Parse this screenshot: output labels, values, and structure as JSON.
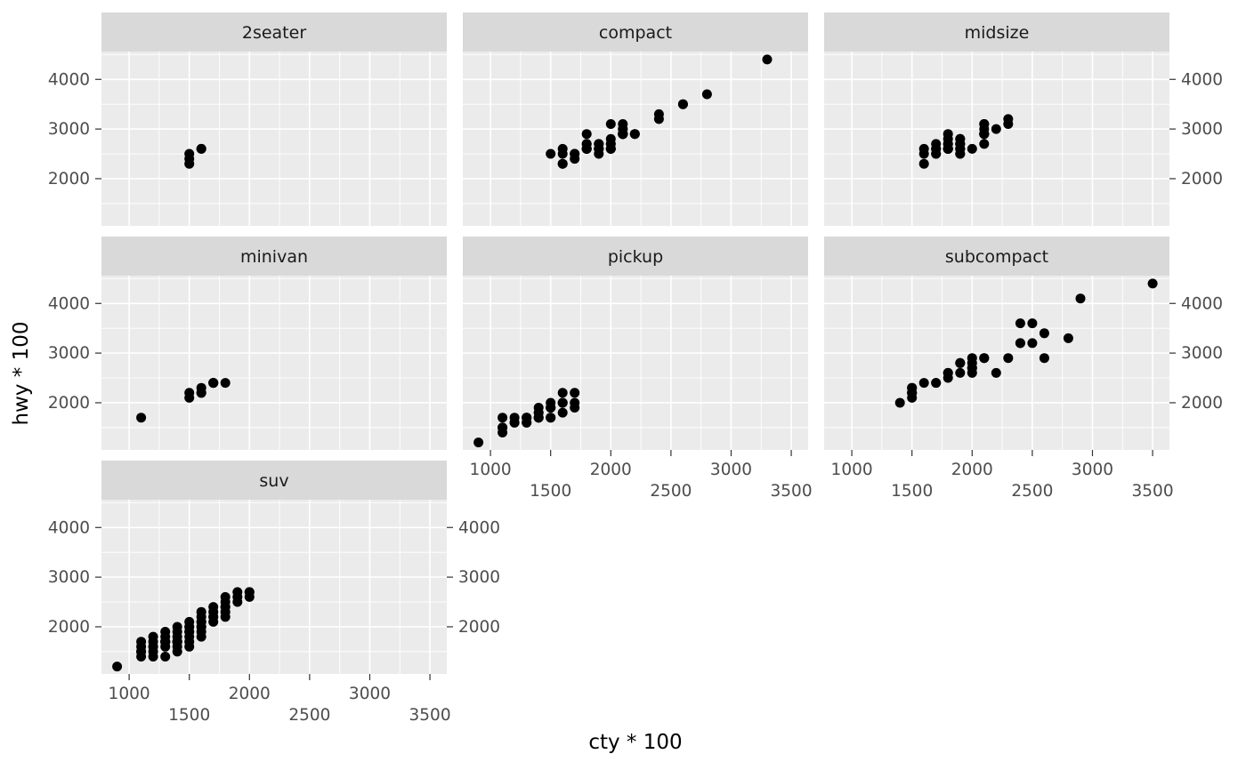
{
  "chart_data": {
    "type": "scatter",
    "title": "",
    "xlabel": "cty * 100",
    "ylabel": "hwy * 100",
    "facet_by": "class",
    "x_domain": [
      770,
      3640
    ],
    "y_domain": [
      1050,
      4560
    ],
    "x_major_ticks": [
      1000,
      1500,
      2000,
      2500,
      3000,
      3500
    ],
    "x_minor_ticks": [
      1250,
      1750,
      2250,
      2750,
      3250
    ],
    "y_major_ticks": [
      2000,
      3000,
      4000
    ],
    "y_minor_ticks": [
      1500,
      2500,
      3500,
      4500
    ],
    "legend": "none",
    "grid": "on",
    "colors": {
      "panel_bg": "#ebebeb",
      "strip_bg": "#d9d9d9",
      "grid_major": "#ffffff",
      "grid_minor": "#ffffff",
      "point": "#000000",
      "tick_label": "#4d4d4d",
      "strip_text": "#1a1a1a",
      "tick_mark": "#333333"
    },
    "facets": [
      {
        "label": "2seater",
        "points": [
          [
            1500,
            2300
          ],
          [
            1500,
            2400
          ],
          [
            1500,
            2500
          ],
          [
            1600,
            2600
          ],
          [
            1600,
            2600
          ]
        ]
      },
      {
        "label": "compact",
        "points": [
          [
            1800,
            2900
          ],
          [
            2100,
            2900
          ],
          [
            2000,
            3100
          ],
          [
            2100,
            3000
          ],
          [
            1600,
            2600
          ],
          [
            1800,
            2600
          ],
          [
            1800,
            2700
          ],
          [
            1800,
            2600
          ],
          [
            1600,
            2500
          ],
          [
            2000,
            2800
          ],
          [
            1900,
            2700
          ],
          [
            1700,
            2500
          ],
          [
            1700,
            2500
          ],
          [
            1500,
            2500
          ],
          [
            1800,
            2600
          ],
          [
            1800,
            2600
          ],
          [
            2000,
            2600
          ],
          [
            1900,
            2600
          ],
          [
            2000,
            2700
          ],
          [
            2000,
            2700
          ],
          [
            1900,
            2500
          ],
          [
            2000,
            2600
          ],
          [
            1800,
            2600
          ],
          [
            1800,
            2700
          ],
          [
            1900,
            2700
          ],
          [
            2100,
            2900
          ],
          [
            2100,
            3000
          ],
          [
            2000,
            2600
          ],
          [
            2100,
            3100
          ],
          [
            2400,
            3300
          ],
          [
            2400,
            3200
          ],
          [
            2600,
            3500
          ],
          [
            2600,
            3500
          ],
          [
            2800,
            3700
          ],
          [
            2100,
            2900
          ],
          [
            1900,
            2600
          ],
          [
            2100,
            2900
          ],
          [
            2200,
            2900
          ],
          [
            1600,
            2300
          ],
          [
            2100,
            2900
          ],
          [
            1900,
            2600
          ],
          [
            2100,
            2900
          ],
          [
            2200,
            2900
          ],
          [
            1700,
            2400
          ],
          [
            3300,
            4400
          ],
          [
            2100,
            2900
          ],
          [
            2100,
            2900
          ],
          [
            1600,
            2300
          ]
        ]
      },
      {
        "label": "midsize",
        "points": [
          [
            1700,
            2500
          ],
          [
            1700,
            2500
          ],
          [
            1600,
            2300
          ],
          [
            1900,
            2700
          ],
          [
            2200,
            3000
          ],
          [
            1800,
            2600
          ],
          [
            1800,
            2900
          ],
          [
            1700,
            2600
          ],
          [
            1800,
            2600
          ],
          [
            1800,
            2700
          ],
          [
            1900,
            2800
          ],
          [
            1800,
            2600
          ],
          [
            1800,
            2600
          ],
          [
            1900,
            2800
          ],
          [
            2100,
            3100
          ],
          [
            2100,
            2900
          ],
          [
            1900,
            2700
          ],
          [
            2300,
            3100
          ],
          [
            2300,
            3200
          ],
          [
            1900,
            2700
          ],
          [
            1800,
            2600
          ],
          [
            1900,
            2500
          ],
          [
            1900,
            2500
          ],
          [
            1900,
            2600
          ],
          [
            1800,
            2600
          ],
          [
            1700,
            2700
          ],
          [
            1800,
            2800
          ],
          [
            1600,
            2600
          ],
          [
            1700,
            2600
          ],
          [
            2100,
            2900
          ],
          [
            2100,
            2700
          ],
          [
            2000,
            2600
          ],
          [
            1900,
            2600
          ],
          [
            1800,
            2600
          ],
          [
            1800,
            2700
          ],
          [
            2100,
            3100
          ],
          [
            2100,
            2900
          ],
          [
            1900,
            2600
          ],
          [
            2100,
            2900
          ],
          [
            2100,
            3000
          ],
          [
            1600,
            2500
          ]
        ]
      },
      {
        "label": "minivan",
        "points": [
          [
            1800,
            2400
          ],
          [
            1700,
            2400
          ],
          [
            1600,
            2200
          ],
          [
            1600,
            2200
          ],
          [
            1700,
            2400
          ],
          [
            1700,
            2400
          ],
          [
            1100,
            1700
          ],
          [
            1500,
            2200
          ],
          [
            1500,
            2100
          ],
          [
            1600,
            2300
          ],
          [
            1700,
            2400
          ]
        ]
      },
      {
        "label": "pickup",
        "points": [
          [
            900,
            1200
          ],
          [
            1100,
            1500
          ],
          [
            1100,
            1400
          ],
          [
            1100,
            1500
          ],
          [
            1200,
            1600
          ],
          [
            1200,
            1700
          ],
          [
            1300,
            1600
          ],
          [
            1300,
            1700
          ],
          [
            1300,
            1700
          ],
          [
            1300,
            1600
          ],
          [
            1400,
            1700
          ],
          [
            1400,
            1900
          ],
          [
            1400,
            1700
          ],
          [
            1400,
            1800
          ],
          [
            1400,
            1700
          ],
          [
            1500,
            1900
          ],
          [
            1500,
            1700
          ],
          [
            1500,
            1900
          ],
          [
            1500,
            2000
          ],
          [
            1600,
            2000
          ],
          [
            1600,
            2200
          ],
          [
            1600,
            1800
          ],
          [
            1600,
            2000
          ],
          [
            1700,
            2200
          ],
          [
            1700,
            1900
          ],
          [
            1700,
            2000
          ],
          [
            1500,
            1700
          ],
          [
            1400,
            1800
          ],
          [
            1300,
            1700
          ],
          [
            1200,
            1600
          ],
          [
            1100,
            1700
          ],
          [
            1500,
            1900
          ],
          [
            1600,
            2000
          ]
        ]
      },
      {
        "label": "subcompact",
        "points": [
          [
            2800,
            3300
          ],
          [
            2400,
            3200
          ],
          [
            2400,
            3600
          ],
          [
            2500,
            3600
          ],
          [
            2300,
            2900
          ],
          [
            2600,
            3400
          ],
          [
            2400,
            3200
          ],
          [
            2100,
            2900
          ],
          [
            2500,
            3200
          ],
          [
            2000,
            2700
          ],
          [
            2000,
            2600
          ],
          [
            1900,
            2800
          ],
          [
            1800,
            2600
          ],
          [
            2000,
            2700
          ],
          [
            1900,
            2800
          ],
          [
            1700,
            2400
          ],
          [
            1800,
            2600
          ],
          [
            1800,
            2500
          ],
          [
            1500,
            2200
          ],
          [
            1500,
            2300
          ],
          [
            1500,
            2200
          ],
          [
            1600,
            2400
          ],
          [
            1500,
            2200
          ],
          [
            1500,
            2300
          ],
          [
            1700,
            2400
          ],
          [
            3500,
            4400
          ],
          [
            2900,
            4100
          ],
          [
            2000,
            2800
          ],
          [
            1900,
            2600
          ],
          [
            2000,
            2900
          ],
          [
            2100,
            2900
          ],
          [
            1400,
            2000
          ],
          [
            1500,
            2100
          ],
          [
            2200,
            2600
          ],
          [
            2600,
            2900
          ]
        ]
      },
      {
        "label": "suv",
        "points": [
          [
            900,
            1200
          ],
          [
            1100,
            1500
          ],
          [
            1100,
            1400
          ],
          [
            1100,
            1500
          ],
          [
            1100,
            1600
          ],
          [
            1100,
            1700
          ],
          [
            1200,
            1600
          ],
          [
            1200,
            1500
          ],
          [
            1200,
            1700
          ],
          [
            1200,
            1600
          ],
          [
            1200,
            1800
          ],
          [
            1300,
            1700
          ],
          [
            1300,
            1700
          ],
          [
            1300,
            1700
          ],
          [
            1300,
            1900
          ],
          [
            1300,
            1700
          ],
          [
            1300,
            1800
          ],
          [
            1300,
            1600
          ],
          [
            1400,
            1700
          ],
          [
            1400,
            1700
          ],
          [
            1400,
            1800
          ],
          [
            1400,
            1700
          ],
          [
            1400,
            1900
          ],
          [
            1400,
            1700
          ],
          [
            1400,
            2000
          ],
          [
            1400,
            1600
          ],
          [
            1500,
            2000
          ],
          [
            1500,
            1900
          ],
          [
            1500,
            1800
          ],
          [
            1500,
            2000
          ],
          [
            1500,
            1900
          ],
          [
            1500,
            2100
          ],
          [
            1500,
            1700
          ],
          [
            1600,
            2100
          ],
          [
            1600,
            2000
          ],
          [
            1600,
            2100
          ],
          [
            1600,
            2200
          ],
          [
            1600,
            2000
          ],
          [
            1600,
            1900
          ],
          [
            1600,
            2300
          ],
          [
            1700,
            2200
          ],
          [
            1700,
            2400
          ],
          [
            1700,
            2200
          ],
          [
            1700,
            2100
          ],
          [
            1700,
            2300
          ],
          [
            1800,
            2300
          ],
          [
            1800,
            2400
          ],
          [
            1800,
            2200
          ],
          [
            1800,
            2600
          ],
          [
            1800,
            2500
          ],
          [
            1800,
            2400
          ],
          [
            1900,
            2700
          ],
          [
            1900,
            2500
          ],
          [
            1900,
            2600
          ],
          [
            2000,
            2600
          ],
          [
            2000,
            2700
          ],
          [
            2000,
            2700
          ],
          [
            1300,
            1400
          ],
          [
            1400,
            1500
          ],
          [
            1200,
            1400
          ],
          [
            1500,
            1600
          ],
          [
            1600,
            1800
          ]
        ]
      }
    ]
  }
}
